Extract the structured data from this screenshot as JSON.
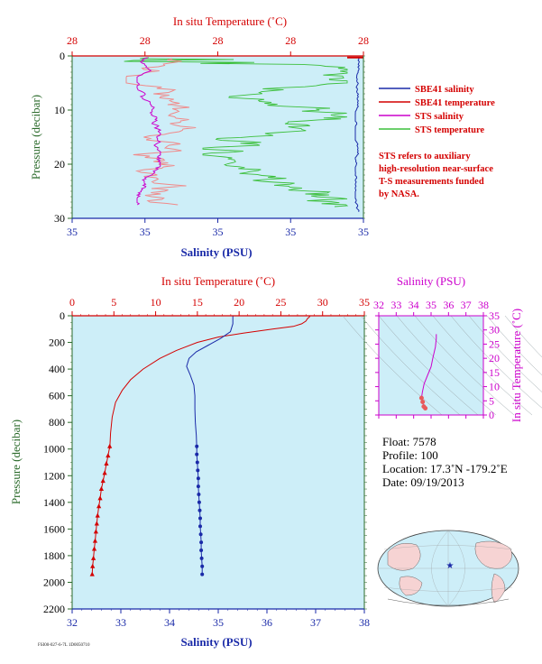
{
  "chart_data": [
    {
      "type": "line",
      "name": "near-surface",
      "title_top": "In situ Temperature (˚C)",
      "top_ticks": [
        "28",
        "28",
        "28",
        "28",
        "28"
      ],
      "xlabel": "Salinity (PSU)",
      "bottom_ticks": [
        "35",
        "35",
        "35",
        "35",
        "35"
      ],
      "ylabel": "Pressure (decibar)",
      "yticks": [
        "0",
        "10",
        "20",
        "30"
      ],
      "ylim": [
        30,
        0
      ],
      "legend": {
        "items": [
          {
            "label": "SBE41 salinity",
            "color": "#1a2aa8"
          },
          {
            "label": "SBE41 temperature",
            "color": "#d40000"
          },
          {
            "label": "STS salinity",
            "color": "#cc00cc"
          },
          {
            "label": "STS temperature",
            "color": "#3cbf3c"
          }
        ],
        "note": [
          "STS refers to auxiliary",
          "high-resolution near-surface",
          "T-S measurements funded",
          "by NASA."
        ]
      }
    },
    {
      "type": "line",
      "name": "full-profile",
      "title_top": "In situ Temperature (˚C)",
      "temp_ticks": [
        "0",
        "5",
        "10",
        "15",
        "20",
        "25",
        "30",
        "35"
      ],
      "temp_range": [
        0,
        35
      ],
      "xlabel": "Salinity (PSU)",
      "sal_ticks": [
        "32",
        "33",
        "34",
        "35",
        "36",
        "37",
        "38"
      ],
      "sal_range": [
        32,
        38
      ],
      "ylabel": "Pressure (decibar)",
      "yticks": [
        "0",
        "200",
        "400",
        "600",
        "800",
        "1000",
        "1200",
        "1400",
        "1600",
        "1800",
        "2000",
        "2200"
      ],
      "ylim": [
        2200,
        0
      ],
      "series": [
        {
          "name": "Temperature",
          "color": "#d40000",
          "points": [
            [
              28.5,
              0
            ],
            [
              28.4,
              10
            ],
            [
              28.2,
              20
            ],
            [
              28.0,
              40
            ],
            [
              27.5,
              60
            ],
            [
              26.5,
              80
            ],
            [
              24.0,
              100
            ],
            [
              20.5,
              130
            ],
            [
              17.5,
              160
            ],
            [
              15.0,
              200
            ],
            [
              12.5,
              260
            ],
            [
              10.5,
              320
            ],
            [
              8.5,
              400
            ],
            [
              7.0,
              480
            ],
            [
              6.0,
              560
            ],
            [
              5.2,
              650
            ],
            [
              4.8,
              760
            ],
            [
              4.6,
              880
            ],
            [
              4.5,
              1000
            ]
          ],
          "markers": [
            [
              4.5,
              980
            ],
            [
              4.3,
              1050
            ],
            [
              4.1,
              1110
            ],
            [
              3.9,
              1180
            ],
            [
              3.7,
              1240
            ],
            [
              3.5,
              1300
            ],
            [
              3.35,
              1370
            ],
            [
              3.2,
              1430
            ],
            [
              3.05,
              1500
            ],
            [
              2.95,
              1560
            ],
            [
              2.85,
              1620
            ],
            [
              2.75,
              1690
            ],
            [
              2.65,
              1750
            ],
            [
              2.55,
              1820
            ],
            [
              2.45,
              1880
            ],
            [
              2.4,
              1940
            ]
          ]
        },
        {
          "name": "Salinity",
          "color": "#1a2aa8",
          "points": [
            [
              35.3,
              0
            ],
            [
              35.3,
              60
            ],
            [
              35.25,
              120
            ],
            [
              35.05,
              170
            ],
            [
              34.8,
              220
            ],
            [
              34.55,
              270
            ],
            [
              34.4,
              320
            ],
            [
              34.35,
              380
            ],
            [
              34.42,
              440
            ],
            [
              34.5,
              520
            ],
            [
              34.52,
              600
            ],
            [
              34.52,
              700
            ],
            [
              34.53,
              800
            ],
            [
              34.55,
              900
            ],
            [
              34.56,
              1000
            ]
          ],
          "markers": [
            [
              34.56,
              980
            ],
            [
              34.56,
              1040
            ],
            [
              34.57,
              1100
            ],
            [
              34.58,
              1160
            ],
            [
              34.59,
              1220
            ],
            [
              34.59,
              1280
            ],
            [
              34.6,
              1340
            ],
            [
              34.61,
              1400
            ],
            [
              34.62,
              1460
            ],
            [
              34.63,
              1520
            ],
            [
              34.63,
              1580
            ],
            [
              34.64,
              1640
            ],
            [
              34.65,
              1700
            ],
            [
              34.65,
              1760
            ],
            [
              34.66,
              1820
            ],
            [
              34.67,
              1880
            ],
            [
              34.67,
              1940
            ]
          ]
        }
      ]
    },
    {
      "type": "scatter",
      "name": "TS diagram",
      "xlabel": "Salinity (PSU)",
      "xticks": [
        "32",
        "33",
        "34",
        "35",
        "36",
        "37",
        "38"
      ],
      "xlim": [
        32,
        38
      ],
      "ylabel": "In situ Temperature (˚C)",
      "yticks": [
        "0",
        "5",
        "10",
        "15",
        "20",
        "25",
        "30",
        "35"
      ],
      "ylim": [
        0,
        35
      ],
      "trace": [
        [
          35.3,
          28.5
        ],
        [
          35.3,
          27
        ],
        [
          35.25,
          24
        ],
        [
          35.1,
          20
        ],
        [
          35.0,
          17
        ],
        [
          34.8,
          14
        ],
        [
          34.6,
          11
        ],
        [
          34.5,
          8
        ],
        [
          34.45,
          6
        ],
        [
          34.52,
          4.6
        ],
        [
          34.58,
          3
        ],
        [
          34.67,
          2.4
        ]
      ]
    }
  ],
  "info": {
    "float": "Float:  7578",
    "profile": "Profile:  100",
    "location": "Location:  17.3˚N  -179.2˚E",
    "date": "Date:  09/19/2013"
  },
  "map": {
    "marker_color": "#1a2aa8"
  },
  "footer": {
    "tiny": "FSI00-027-6-7L 1D0050710"
  }
}
